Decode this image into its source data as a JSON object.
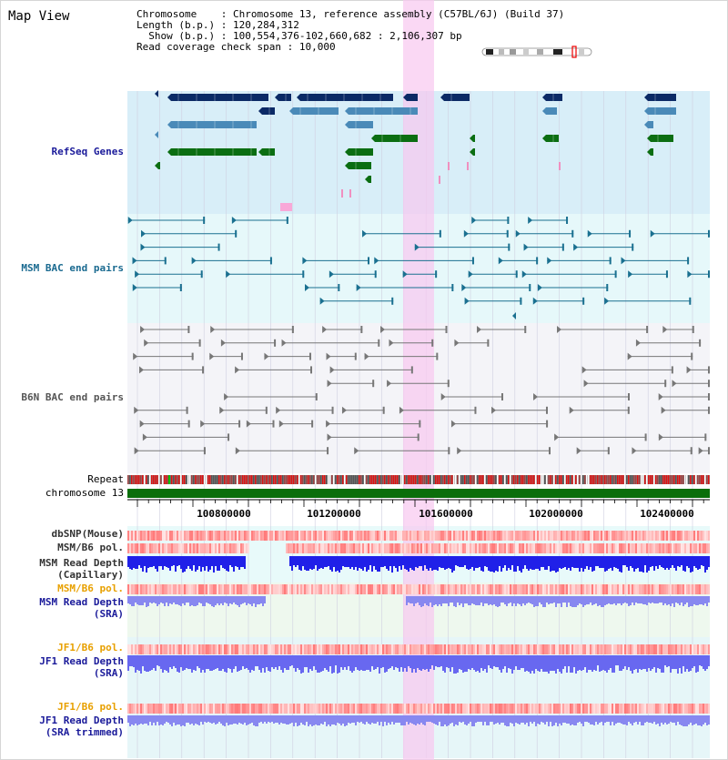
{
  "page": {
    "title": "Map View"
  },
  "info": {
    "chromosome_label": "Chromosome",
    "chromosome_value": "Chromosome 13, reference assembly (C57BL/6J) (Build 37)",
    "length_label": "Length (b.p.)",
    "length_value": "120,284,312",
    "show_label": "Show (b.p.)",
    "show_value": "100,554,376-102,660,682 : 2,106,307 bp",
    "coverage_label": "Read coverage check span",
    "coverage_value": "10,000"
  },
  "tracks": {
    "refseq": "RefSeq Genes",
    "msm_bac": "MSM BAC end pairs",
    "b6n_bac": "B6N BAC end pairs",
    "repeat": "Repeat",
    "chromosome": "chromosome 13",
    "dbsnp": "dbSNP(Mouse)",
    "msm_b6_pol": "MSM/B6 pol.",
    "msm_read_depth_cap_1": "MSM Read Depth",
    "msm_read_depth_cap_2": "(Capillary)",
    "msm_b6_pol_sra": "MSM/B6 pol.",
    "msm_read_depth_sra_1": "MSM Read Depth",
    "msm_read_depth_sra_2": "(SRA)",
    "jf1_b6_pol": "JF1/B6 pol.",
    "jf1_read_depth_1": "JF1 Read Depth",
    "jf1_read_depth_2": "(SRA)",
    "jf1_b6_pol_trim": "JF1/B6 pol.",
    "jf1_read_depth_trim_1": "JF1 Read Depth",
    "jf1_read_depth_trim_2": "(SRA trimmed)"
  },
  "axis": {
    "ticks": [
      "100800000",
      "101200000",
      "101600000",
      "102000000",
      "102400000"
    ]
  },
  "colors": {
    "refseq_dark": "#0b2a66",
    "refseq_mid": "#4a8ab8",
    "refseq_green": "#0b6e12",
    "msm_bac": "#1a7090",
    "b6n_bac": "#777777",
    "highlight": "#f8c8f0",
    "label_blue": "#1a1a9a",
    "label_orange": "#e8a000"
  }
}
